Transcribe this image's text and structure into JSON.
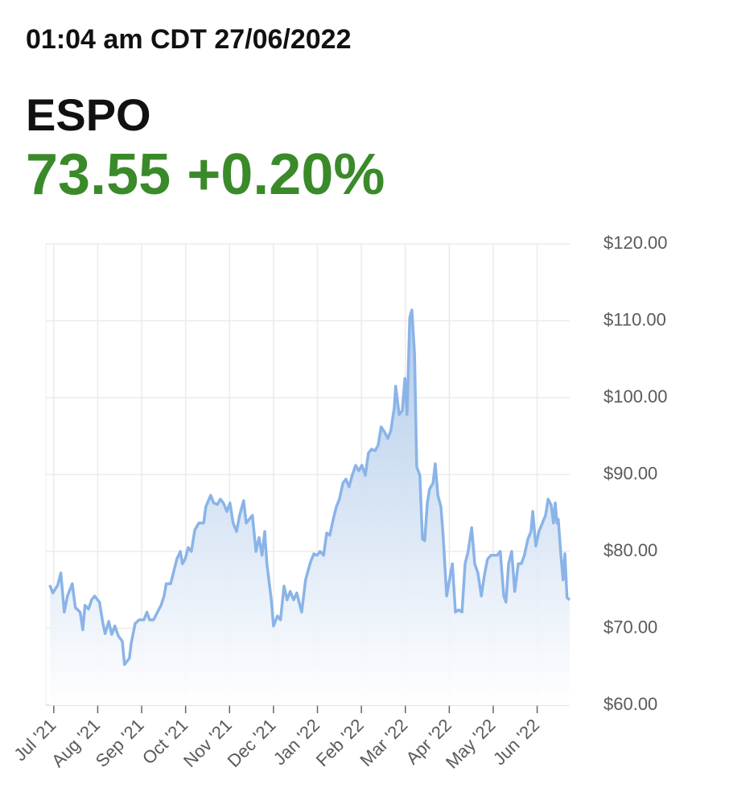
{
  "header": {
    "timestamp": "01:04 am CDT 27/06/2022",
    "symbol": "ESPO",
    "price": "73.55",
    "change": "+0.20%"
  },
  "chart_data": {
    "type": "area",
    "color": "#8ab4e8",
    "grid": true,
    "xlim": [
      -0.18,
      11.74
    ],
    "xticks": [
      {
        "value": 0,
        "label": "Jul '21"
      },
      {
        "value": 1,
        "label": "Aug '21"
      },
      {
        "value": 2,
        "label": "Sep '21"
      },
      {
        "value": 3,
        "label": "Oct '21"
      },
      {
        "value": 4,
        "label": "Nov '21"
      },
      {
        "value": 5,
        "label": "Dec '21"
      },
      {
        "value": 6,
        "label": "Jan '22"
      },
      {
        "value": 7,
        "label": "Feb '22"
      },
      {
        "value": 8,
        "label": "Mar '22"
      },
      {
        "value": 9,
        "label": "Apr '22"
      },
      {
        "value": 10,
        "label": "May '22"
      },
      {
        "value": 11,
        "label": "Jun '22"
      }
    ],
    "ylim": [
      60,
      120
    ],
    "yticks": [
      {
        "value": 60,
        "label": "$60.00"
      },
      {
        "value": 70,
        "label": "$70.00"
      },
      {
        "value": 80,
        "label": "$80.00"
      },
      {
        "value": 90,
        "label": "$90.00"
      },
      {
        "value": 100,
        "label": "$100.00"
      },
      {
        "value": 110,
        "label": "$110.00"
      },
      {
        "value": 120,
        "label": "$120.00"
      }
    ],
    "x": [
      -0.09,
      -0.02,
      0.09,
      0.16,
      0.24,
      0.31,
      0.42,
      0.49,
      0.6,
      0.66,
      0.71,
      0.79,
      0.86,
      0.93,
      1.04,
      1.12,
      1.17,
      1.25,
      1.32,
      1.39,
      1.47,
      1.56,
      1.61,
      1.72,
      1.76,
      1.85,
      1.94,
      2.05,
      2.12,
      2.18,
      2.27,
      2.36,
      2.44,
      2.51,
      2.56,
      2.66,
      2.73,
      2.8,
      2.88,
      2.93,
      2.99,
      3.06,
      3.13,
      3.21,
      3.3,
      3.41,
      3.46,
      3.57,
      3.64,
      3.72,
      3.79,
      3.86,
      3.94,
      4.01,
      4.08,
      4.16,
      4.23,
      4.32,
      4.38,
      4.45,
      4.52,
      4.6,
      4.67,
      4.74,
      4.8,
      4.85,
      4.95,
      5.0,
      5.09,
      5.16,
      5.24,
      5.31,
      5.38,
      5.46,
      5.53,
      5.64,
      5.73,
      5.84,
      5.92,
      5.99,
      6.06,
      6.14,
      6.21,
      6.28,
      6.36,
      6.43,
      6.5,
      6.58,
      6.65,
      6.72,
      6.79,
      6.87,
      6.94,
      7.01,
      7.09,
      7.16,
      7.23,
      7.31,
      7.38,
      7.45,
      7.53,
      7.6,
      7.67,
      7.75,
      7.78,
      7.86,
      7.93,
      7.99,
      8.04,
      8.1,
      8.15,
      8.21,
      8.26,
      8.33,
      8.39,
      8.44,
      8.5,
      8.55,
      8.63,
      8.68,
      8.74,
      8.81,
      8.86,
      8.94,
      8.99,
      9.07,
      9.14,
      9.21,
      9.29,
      9.36,
      9.43,
      9.51,
      9.58,
      9.65,
      9.73,
      9.8,
      9.87,
      9.95,
      10.09,
      10.16,
      10.24,
      10.29,
      10.35,
      10.42,
      10.49,
      10.57,
      10.64,
      10.71,
      10.79,
      10.86,
      10.9,
      10.97,
      11.04,
      11.12,
      11.19,
      11.25,
      11.32,
      11.37,
      11.41,
      11.45,
      11.48,
      11.54,
      11.59,
      11.63,
      11.68,
      11.74
    ],
    "values": [
      75.6,
      74.6,
      75.6,
      77.2,
      72.1,
      74.2,
      75.8,
      72.7,
      72.1,
      69.8,
      73.0,
      72.5,
      73.7,
      74.2,
      73.4,
      70.6,
      69.3,
      70.9,
      69.2,
      70.3,
      69.0,
      68.3,
      65.3,
      66.1,
      68.0,
      70.6,
      71.1,
      71.1,
      72.1,
      71.1,
      71.1,
      72.1,
      73.0,
      74.2,
      75.8,
      75.8,
      77.4,
      79.0,
      80.0,
      78.4,
      79.0,
      80.5,
      80.0,
      82.8,
      83.7,
      83.7,
      85.8,
      87.3,
      86.3,
      86.1,
      86.8,
      86.3,
      85.2,
      86.3,
      83.7,
      82.6,
      84.7,
      86.6,
      83.7,
      84.2,
      84.7,
      80.0,
      81.8,
      79.5,
      82.6,
      78.4,
      73.7,
      70.3,
      71.6,
      71.1,
      75.5,
      73.7,
      74.8,
      73.7,
      74.6,
      72.1,
      76.3,
      78.6,
      79.7,
      79.5,
      80.0,
      79.5,
      82.4,
      82.1,
      84.2,
      85.8,
      86.8,
      88.9,
      89.4,
      88.4,
      89.9,
      91.2,
      90.5,
      91.2,
      89.9,
      92.8,
      93.3,
      93.1,
      93.8,
      96.2,
      95.5,
      94.7,
      95.7,
      98.8,
      101.5,
      97.8,
      98.3,
      102.5,
      97.8,
      110.4,
      111.4,
      105.7,
      91.0,
      89.9,
      81.6,
      81.4,
      86.3,
      88.1,
      88.9,
      91.4,
      87.3,
      85.8,
      82.1,
      74.2,
      75.8,
      78.4,
      72.1,
      72.4,
      72.1,
      78.4,
      80.0,
      83.1,
      78.4,
      77.2,
      74.2,
      76.9,
      79.0,
      79.5,
      79.5,
      80.0,
      74.2,
      73.4,
      78.4,
      80.0,
      74.8,
      78.4,
      78.4,
      79.5,
      81.6,
      82.6,
      85.2,
      80.7,
      82.6,
      83.7,
      84.7,
      86.8,
      86.0,
      83.7,
      86.3,
      83.7,
      84.2,
      79.5,
      76.3,
      79.7,
      74.0,
      73.7
    ]
  }
}
